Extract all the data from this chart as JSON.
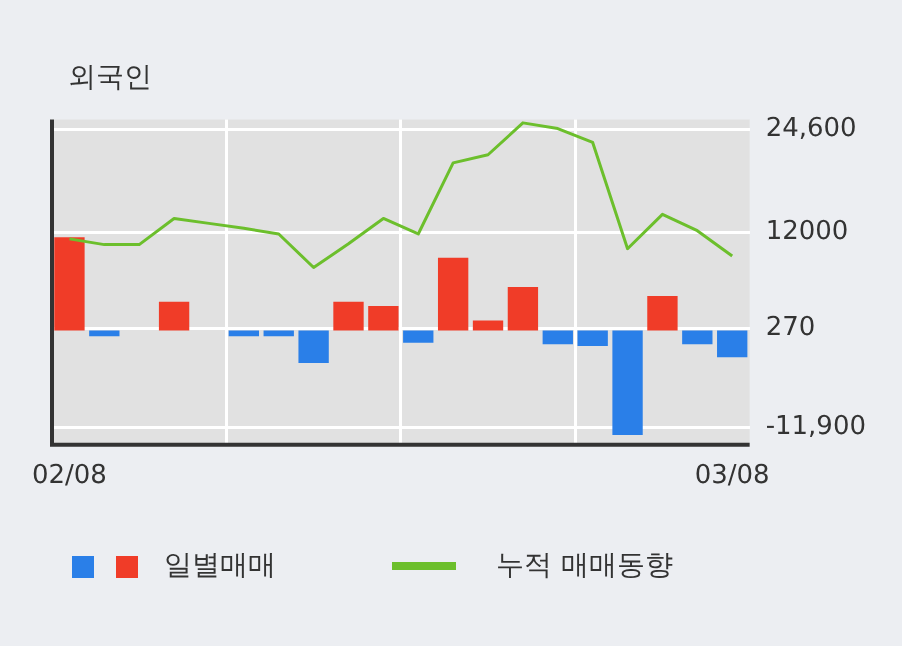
{
  "chart_data": {
    "type": "bar",
    "title": "외국인",
    "categories": [
      "02/08",
      null,
      null,
      null,
      null,
      null,
      null,
      null,
      null,
      null,
      null,
      null,
      null,
      null,
      null,
      null,
      null,
      null,
      null,
      "03/08"
    ],
    "series": [
      {
        "name": "일별매매",
        "colors": [
          "#f03c28",
          "#2a7fe8",
          null,
          "#f03c28",
          null,
          "#2a7fe8",
          "#2a7fe8",
          "#2a7fe8",
          "#f03c28",
          "#f03c28",
          "#2a7fe8",
          "#f03c28",
          "#f03c28",
          "#f03c28",
          "#2a7fe8",
          "#2a7fe8",
          "#2a7fe8",
          "#f03c28",
          "#2a7fe8",
          "#2a7fe8"
        ],
        "values": [
          11400,
          -700,
          null,
          3500,
          null,
          -700,
          -700,
          -4000,
          3500,
          3000,
          -1500,
          8900,
          1200,
          5300,
          -1700,
          -1900,
          -12800,
          4200,
          -1700,
          -3300
        ]
      },
      {
        "name": "누적 매매동향",
        "type": "line",
        "color": "#6cbf2c",
        "values": [
          11200,
          10500,
          10500,
          13700,
          13100,
          12500,
          11800,
          7700,
          10600,
          13700,
          11800,
          20500,
          21500,
          25400,
          24700,
          23000,
          10000,
          14200,
          12200,
          9100
        ]
      }
    ],
    "ylim": [
      -14000,
      25800
    ],
    "yticks": [
      {
        "value": 24600,
        "label": "24,600"
      },
      {
        "value": 12000,
        "label": "12000"
      },
      {
        "value": 270,
        "label": "270"
      },
      {
        "value": -11900,
        "label": "-11,900"
      }
    ],
    "grid": true,
    "legend": "bottom",
    "marker": "none",
    "line_style": "solid"
  }
}
